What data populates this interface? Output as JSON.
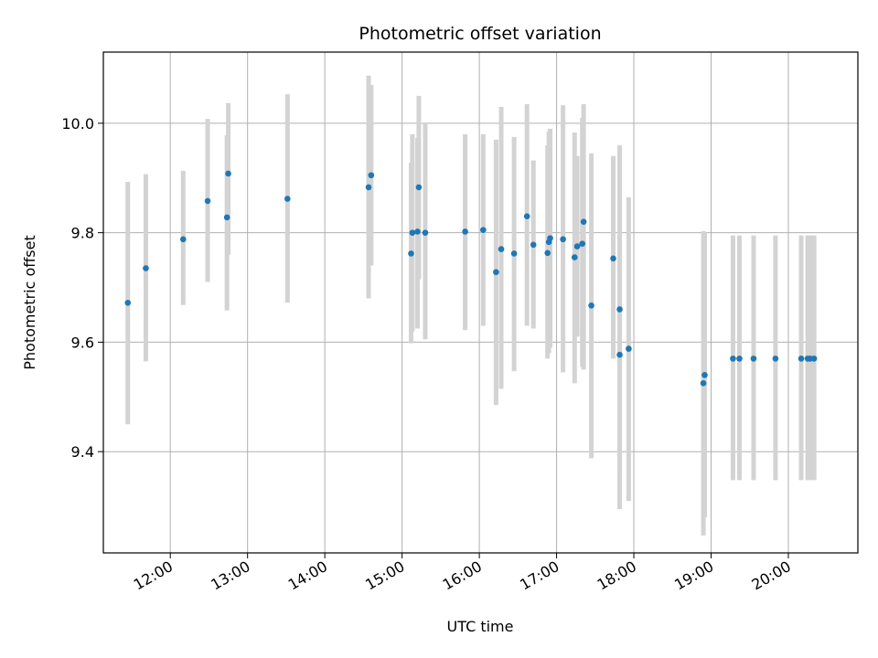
{
  "chart_data": {
    "type": "scatter",
    "title": "Photometric offset variation",
    "xlabel": "UTC time",
    "ylabel": "Photometric offset",
    "xlim": [
      "11:08",
      "20:54"
    ],
    "ylim": [
      9.215,
      10.13
    ],
    "x_ticks": [
      "12:00",
      "13:00",
      "14:00",
      "15:00",
      "16:00",
      "17:00",
      "18:00",
      "19:00",
      "20:00"
    ],
    "y_ticks": [
      9.4,
      9.6,
      9.8,
      10.0
    ],
    "y_tick_labels": [
      "9.4",
      "9.6",
      "9.8",
      "10.0"
    ],
    "grid": true,
    "marker_color": "#1f77b4",
    "errorbar_color": "#d3d3d3",
    "series": [
      {
        "x": [
          "11:27",
          "11:41",
          "12:10",
          "12:29",
          "12:44",
          "12:45",
          "13:31",
          "14:34",
          "14:36",
          "15:07",
          "15:08",
          "15:12",
          "15:13",
          "15:18",
          "15:49",
          "16:03",
          "16:13",
          "16:17",
          "16:27",
          "16:37",
          "16:42",
          "16:53",
          "16:54",
          "16:55",
          "17:05",
          "17:14",
          "17:16",
          "17:20",
          "17:21",
          "17:27",
          "17:44",
          "17:49",
          "17:49",
          "17:56"
        ],
        "y": [
          9.672,
          9.735,
          9.788,
          9.858,
          9.828,
          9.908,
          9.862,
          9.883,
          9.905,
          9.762,
          9.8,
          9.802,
          9.883,
          9.8,
          9.802,
          9.805,
          9.728,
          9.77,
          9.762,
          9.83,
          9.778,
          9.763,
          9.783,
          9.79,
          9.788,
          9.755,
          9.775,
          9.78,
          9.82,
          9.667,
          9.753,
          9.577,
          9.66,
          9.588
        ],
        "err_low": [
          9.45,
          9.565,
          9.668,
          9.71,
          9.658,
          9.76,
          9.672,
          9.68,
          9.74,
          9.598,
          9.62,
          9.625,
          9.715,
          9.605,
          9.622,
          9.63,
          9.485,
          9.515,
          9.547,
          9.63,
          9.625,
          9.57,
          9.58,
          9.59,
          9.545,
          9.525,
          9.61,
          9.555,
          9.55,
          9.388,
          9.57,
          9.295,
          9.36,
          9.31
        ],
        "err_high": [
          9.893,
          9.907,
          9.913,
          10.008,
          9.978,
          10.037,
          10.053,
          10.087,
          10.07,
          9.928,
          9.98,
          9.973,
          10.05,
          10.0,
          9.98,
          9.98,
          9.97,
          10.03,
          9.975,
          10.035,
          9.932,
          9.96,
          9.985,
          9.99,
          10.033,
          9.983,
          9.94,
          10.01,
          10.035,
          9.945,
          9.94,
          9.96,
          9.86,
          9.865
        ]
      },
      {
        "x": [
          "18:54",
          "18:55",
          "19:17",
          "19:22",
          "19:33",
          "19:50",
          "20:10",
          "20:15",
          "20:17",
          "20:20"
        ],
        "y": [
          9.525,
          9.54,
          9.57,
          9.57,
          9.57,
          9.57,
          9.57,
          9.57,
          9.57,
          9.57
        ],
        "err_low": [
          9.247,
          9.28,
          9.348,
          9.348,
          9.348,
          9.348,
          9.348,
          9.348,
          9.348,
          9.348
        ],
        "err_high": [
          9.803,
          9.8,
          9.795,
          9.795,
          9.795,
          9.795,
          9.795,
          9.795,
          9.795,
          9.795
        ]
      }
    ]
  }
}
